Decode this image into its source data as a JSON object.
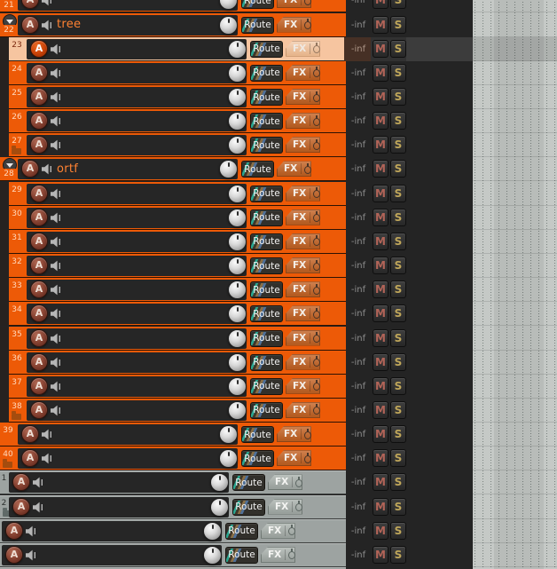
{
  "app": {
    "view": "daw-track-control-panel"
  },
  "labels": {
    "route": "Route",
    "fx": "FX",
    "mute": "M",
    "solo": "S"
  },
  "colors": {
    "track_orange": "#ed5a07",
    "track_gray": "#9da3a1",
    "selected_peach": "#f6c5a0",
    "panel_dark": "#262626",
    "name_text": "#ff8232",
    "mute_letter": "#b26458",
    "solo_letter": "#bfa65a",
    "arrange_bg": "#c5c9c6"
  },
  "tracks": [
    {
      "number": "21",
      "name": "",
      "style": "folder",
      "color": "orange",
      "selected": false,
      "folder_end": false,
      "volume": "-inf"
    },
    {
      "number": "22",
      "name": "tree",
      "style": "folder",
      "color": "orange",
      "selected": false,
      "folder_end": false,
      "volume": "-inf"
    },
    {
      "number": "23",
      "name": "",
      "style": "child",
      "color": "orange",
      "selected": true,
      "folder_end": false,
      "volume": "-inf"
    },
    {
      "number": "24",
      "name": "",
      "style": "child",
      "color": "orange",
      "selected": false,
      "folder_end": false,
      "volume": "-inf"
    },
    {
      "number": "25",
      "name": "",
      "style": "child",
      "color": "orange",
      "selected": false,
      "folder_end": false,
      "volume": "-inf"
    },
    {
      "number": "26",
      "name": "",
      "style": "child",
      "color": "orange",
      "selected": false,
      "folder_end": false,
      "volume": "-inf"
    },
    {
      "number": "27",
      "name": "",
      "style": "child",
      "color": "orange",
      "selected": false,
      "folder_end": true,
      "volume": "-inf"
    },
    {
      "number": "28",
      "name": "ortf",
      "style": "folder",
      "color": "orange",
      "selected": false,
      "folder_end": false,
      "volume": "-inf"
    },
    {
      "number": "29",
      "name": "",
      "style": "child",
      "color": "orange",
      "selected": false,
      "folder_end": false,
      "volume": "-inf"
    },
    {
      "number": "30",
      "name": "",
      "style": "child",
      "color": "orange",
      "selected": false,
      "folder_end": false,
      "volume": "-inf"
    },
    {
      "number": "31",
      "name": "",
      "style": "child",
      "color": "orange",
      "selected": false,
      "folder_end": false,
      "volume": "-inf"
    },
    {
      "number": "32",
      "name": "",
      "style": "child",
      "color": "orange",
      "selected": false,
      "folder_end": false,
      "volume": "-inf"
    },
    {
      "number": "33",
      "name": "",
      "style": "child",
      "color": "orange",
      "selected": false,
      "folder_end": false,
      "volume": "-inf"
    },
    {
      "number": "34",
      "name": "",
      "style": "child",
      "color": "orange",
      "selected": false,
      "folder_end": false,
      "volume": "-inf"
    },
    {
      "number": "35",
      "name": "",
      "style": "child",
      "color": "orange",
      "selected": false,
      "folder_end": false,
      "volume": "-inf"
    },
    {
      "number": "36",
      "name": "",
      "style": "child",
      "color": "orange",
      "selected": false,
      "folder_end": false,
      "volume": "-inf"
    },
    {
      "number": "37",
      "name": "",
      "style": "child",
      "color": "orange",
      "selected": false,
      "folder_end": false,
      "volume": "-inf"
    },
    {
      "number": "38",
      "name": "",
      "style": "child",
      "color": "orange",
      "selected": false,
      "folder_end": true,
      "volume": "-inf"
    },
    {
      "number": "39",
      "name": "",
      "style": "track",
      "color": "orange",
      "selected": false,
      "folder_end": false,
      "volume": "-inf"
    },
    {
      "number": "40",
      "name": "",
      "style": "track",
      "color": "orange",
      "selected": false,
      "folder_end": true,
      "volume": "-inf"
    },
    {
      "number": "1",
      "name": "",
      "style": "gray-inner",
      "color": "gray",
      "selected": false,
      "folder_end": false,
      "volume": "-inf"
    },
    {
      "number": "2",
      "name": "",
      "style": "gray-inner",
      "color": "gray",
      "selected": false,
      "folder_end": true,
      "volume": "-inf"
    },
    {
      "number": "",
      "name": "",
      "style": "gray-outer",
      "color": "gray",
      "selected": false,
      "folder_end": false,
      "volume": "-inf"
    },
    {
      "number": "",
      "name": "",
      "style": "gray-outer",
      "color": "gray",
      "selected": false,
      "folder_end": false,
      "volume": "-inf"
    },
    {
      "number": "",
      "name": "",
      "style": "gray-outer",
      "color": "gray",
      "selected": false,
      "folder_end": false,
      "volume": "-inf"
    }
  ]
}
